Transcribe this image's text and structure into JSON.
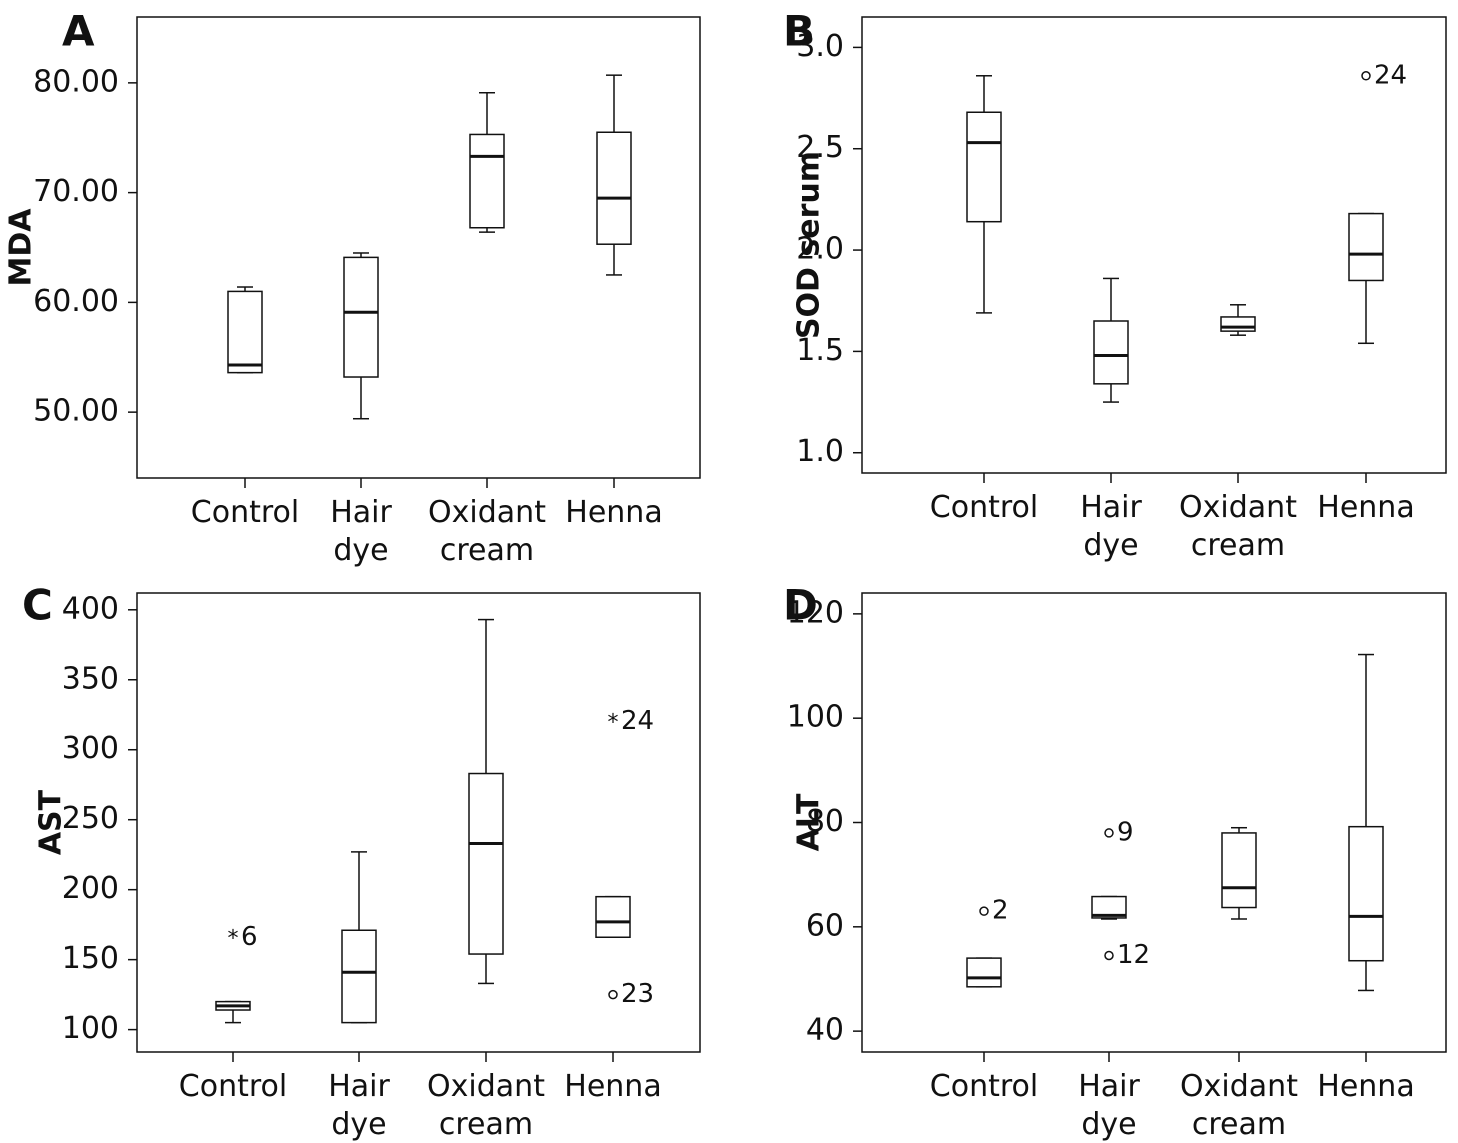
{
  "chart_data": [
    {
      "type": "box",
      "panel": "A",
      "ylabel": "MDA",
      "ylim": [
        44,
        86
      ],
      "yticks": [
        50,
        60,
        70,
        80
      ],
      "ytick_labels": [
        "50.00",
        "60.00",
        "70.00",
        "80.00"
      ],
      "categories": [
        [
          "Control"
        ],
        [
          "Hair",
          "dye"
        ],
        [
          "Oxidant",
          "cream"
        ],
        [
          "Henna"
        ]
      ],
      "boxes": [
        {
          "whisker_low": 53.6,
          "q1": 53.6,
          "median": 54.3,
          "q3": 61.0,
          "whisker_high": 61.4,
          "outliers": []
        },
        {
          "whisker_low": 49.4,
          "q1": 53.2,
          "median": 59.1,
          "q3": 64.1,
          "whisker_high": 64.5,
          "outliers": []
        },
        {
          "whisker_low": 66.4,
          "q1": 66.8,
          "median": 73.3,
          "q3": 75.3,
          "whisker_high": 79.1,
          "outliers": []
        },
        {
          "whisker_low": 62.5,
          "q1": 65.3,
          "median": 69.5,
          "q3": 75.5,
          "whisker_high": 80.7,
          "outliers": []
        }
      ]
    },
    {
      "type": "box",
      "panel": "B",
      "ylabel": "SOD serum",
      "ylim": [
        0.9,
        3.15
      ],
      "yticks": [
        1.0,
        1.5,
        2.0,
        2.5,
        3.0
      ],
      "ytick_labels": [
        "1.0",
        "1.5",
        "2.0",
        "2.5",
        "3.0"
      ],
      "categories": [
        [
          "Control"
        ],
        [
          "Hair",
          "dye"
        ],
        [
          "Oxidant",
          "cream"
        ],
        [
          "Henna"
        ]
      ],
      "boxes": [
        {
          "whisker_low": 1.69,
          "q1": 2.14,
          "median": 2.53,
          "q3": 2.68,
          "whisker_high": 2.86,
          "outliers": []
        },
        {
          "whisker_low": 1.25,
          "q1": 1.34,
          "median": 1.48,
          "q3": 1.65,
          "whisker_high": 1.86,
          "outliers": []
        },
        {
          "whisker_low": 1.58,
          "q1": 1.6,
          "median": 1.62,
          "q3": 1.67,
          "whisker_high": 1.73,
          "outliers": []
        },
        {
          "whisker_low": 1.54,
          "q1": 1.85,
          "median": 1.98,
          "q3": 2.18,
          "whisker_high": 2.18,
          "outliers": [
            {
              "value": 2.86,
              "label": "24",
              "symbol": "circle"
            }
          ]
        }
      ]
    },
    {
      "type": "box",
      "panel": "C",
      "ylabel": "AST",
      "ylim": [
        84,
        412
      ],
      "yticks": [
        100,
        150,
        200,
        250,
        300,
        350,
        400
      ],
      "ytick_labels": [
        "100",
        "150",
        "200",
        "250",
        "300",
        "350",
        "400"
      ],
      "categories": [
        [
          "Control"
        ],
        [
          "Hair",
          "dye"
        ],
        [
          "Oxidant",
          "cream"
        ],
        [
          "Henna"
        ]
      ],
      "boxes": [
        {
          "whisker_low": 105,
          "q1": 114,
          "median": 117,
          "q3": 120,
          "whisker_high": 120,
          "outliers": [
            {
              "value": 166,
              "label": "6",
              "symbol": "star"
            }
          ]
        },
        {
          "whisker_low": 105,
          "q1": 105,
          "median": 141,
          "q3": 171,
          "whisker_high": 227,
          "outliers": []
        },
        {
          "whisker_low": 133,
          "q1": 154,
          "median": 233,
          "q3": 283,
          "whisker_high": 393,
          "outliers": []
        },
        {
          "whisker_low": 166,
          "q1": 166,
          "median": 177,
          "q3": 195,
          "whisker_high": 195,
          "outliers": [
            {
              "value": 320,
              "label": "24",
              "symbol": "star"
            },
            {
              "value": 125,
              "label": "23",
              "symbol": "circle"
            }
          ]
        }
      ]
    },
    {
      "type": "box",
      "panel": "D",
      "ylabel": "ALT",
      "ylim": [
        36,
        124
      ],
      "yticks": [
        40,
        60,
        80,
        100,
        120
      ],
      "ytick_labels": [
        "40",
        "60",
        "80",
        "100",
        "120"
      ],
      "categories": [
        [
          "Control"
        ],
        [
          "Hair",
          "dye"
        ],
        [
          "Oxidant",
          "cream"
        ],
        [
          "Henna"
        ]
      ],
      "boxes": [
        {
          "whisker_low": 48.5,
          "q1": 48.5,
          "median": 50.2,
          "q3": 54.0,
          "whisker_high": 54.0,
          "outliers": [
            {
              "value": 63.0,
              "label": "2",
              "symbol": "circle"
            }
          ]
        },
        {
          "whisker_low": 61.5,
          "q1": 61.7,
          "median": 62.2,
          "q3": 65.8,
          "whisker_high": 65.8,
          "outliers": [
            {
              "value": 78.0,
              "label": "9",
              "symbol": "circle"
            },
            {
              "value": 54.5,
              "label": "12",
              "symbol": "circle"
            }
          ]
        },
        {
          "whisker_low": 61.5,
          "q1": 63.7,
          "median": 67.5,
          "q3": 78.0,
          "whisker_high": 79.0,
          "outliers": []
        },
        {
          "whisker_low": 47.8,
          "q1": 53.5,
          "median": 62.0,
          "q3": 79.2,
          "whisker_high": 112.2,
          "outliers": []
        }
      ]
    }
  ]
}
